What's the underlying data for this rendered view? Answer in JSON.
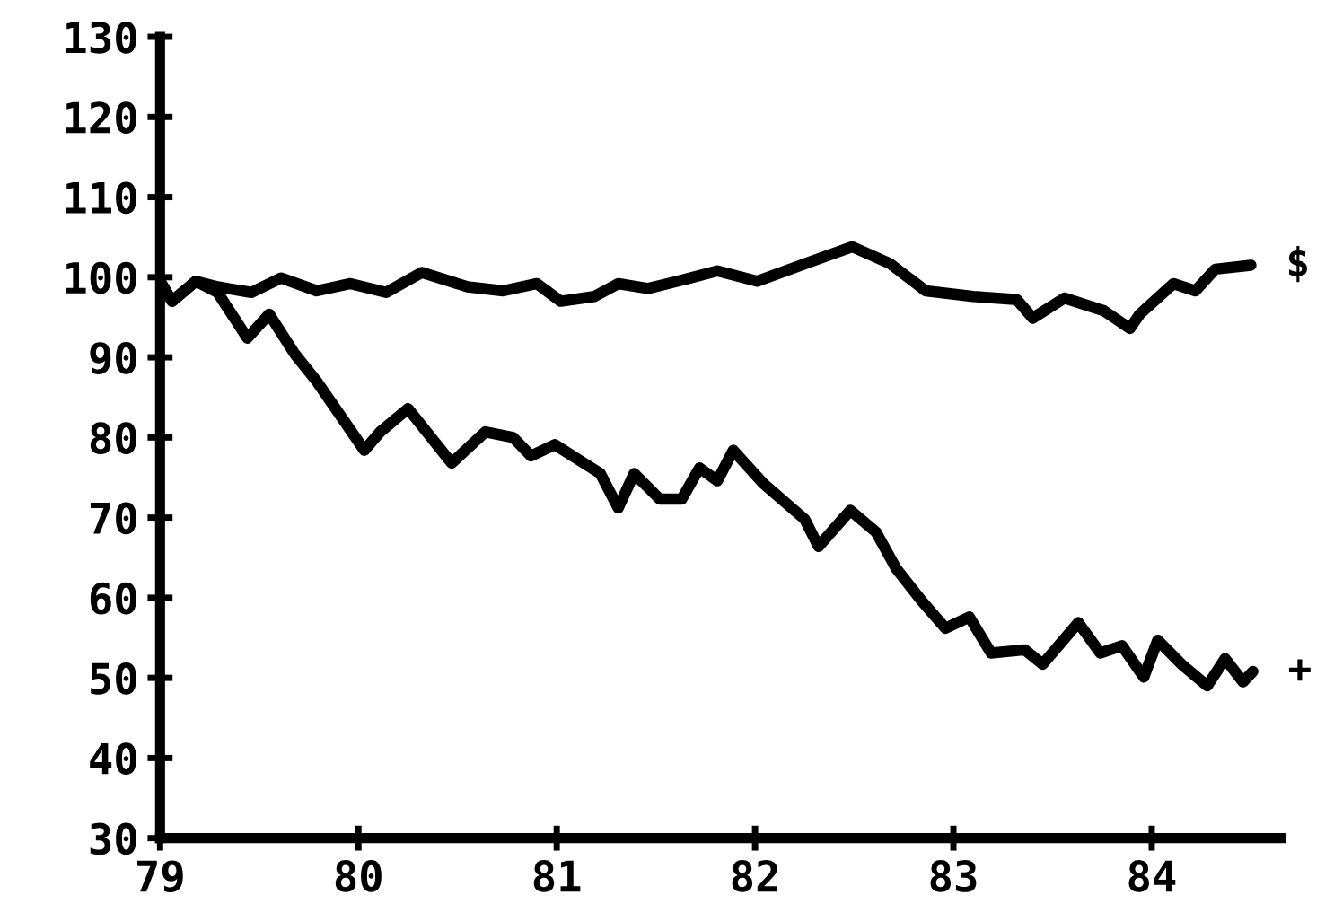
{
  "chart_data": {
    "type": "line",
    "xlim": [
      79,
      84.65
    ],
    "ylim": [
      30,
      130
    ],
    "xticks": [
      79,
      80,
      81,
      82,
      83,
      84
    ],
    "yticks": [
      30,
      40,
      50,
      60,
      70,
      80,
      90,
      100,
      110,
      120,
      130
    ],
    "grid": false,
    "legend": false,
    "marker": "none",
    "line_style": "solid",
    "series": [
      {
        "name": "$",
        "color": "#000000",
        "x": [
          79.0,
          79.06,
          79.18,
          79.29,
          79.46,
          79.61,
          79.79,
          79.96,
          80.14,
          80.32,
          80.55,
          80.73,
          80.9,
          81.02,
          81.19,
          81.31,
          81.46,
          81.61,
          81.81,
          82.01,
          82.31,
          82.49,
          82.68,
          82.86,
          83.1,
          83.32,
          83.4,
          83.56,
          83.76,
          83.89,
          83.94,
          84.11,
          84.22,
          84.32,
          84.5
        ],
        "values": [
          99.5,
          97.0,
          99.5,
          98.8,
          98.1,
          99.9,
          98.3,
          99.2,
          98.1,
          100.6,
          98.8,
          98.3,
          99.2,
          97.0,
          97.6,
          99.2,
          98.6,
          99.5,
          100.8,
          99.5,
          102.2,
          103.8,
          101.7,
          98.3,
          97.6,
          97.2,
          94.9,
          97.4,
          95.8,
          93.6,
          95.4,
          99.2,
          98.3,
          101.0,
          101.5
        ]
      },
      {
        "name": "+",
        "color": "#000000",
        "x": [
          79.0,
          79.06,
          79.18,
          79.29,
          79.44,
          79.55,
          79.68,
          79.79,
          80.03,
          80.11,
          80.25,
          80.47,
          80.64,
          80.78,
          80.87,
          80.99,
          81.22,
          81.31,
          81.39,
          81.52,
          81.63,
          81.72,
          81.81,
          81.89,
          82.04,
          82.25,
          82.32,
          82.48,
          82.61,
          82.71,
          82.84,
          82.96,
          83.08,
          83.19,
          83.36,
          83.45,
          83.63,
          83.74,
          83.85,
          83.96,
          84.03,
          84.15,
          84.28,
          84.37,
          84.46,
          84.51
        ],
        "values": [
          99.5,
          97.0,
          99.5,
          98.1,
          92.4,
          95.4,
          90.4,
          87.0,
          78.4,
          80.7,
          83.6,
          76.8,
          80.7,
          80.0,
          77.7,
          79.1,
          75.5,
          71.2,
          75.5,
          72.3,
          72.3,
          76.2,
          74.6,
          78.4,
          74.3,
          69.8,
          66.4,
          70.9,
          68.2,
          63.7,
          59.6,
          56.2,
          57.6,
          53.1,
          53.5,
          51.7,
          56.9,
          53.1,
          54.0,
          50.1,
          54.7,
          51.7,
          49.0,
          52.4,
          49.5,
          50.8
        ]
      }
    ]
  }
}
